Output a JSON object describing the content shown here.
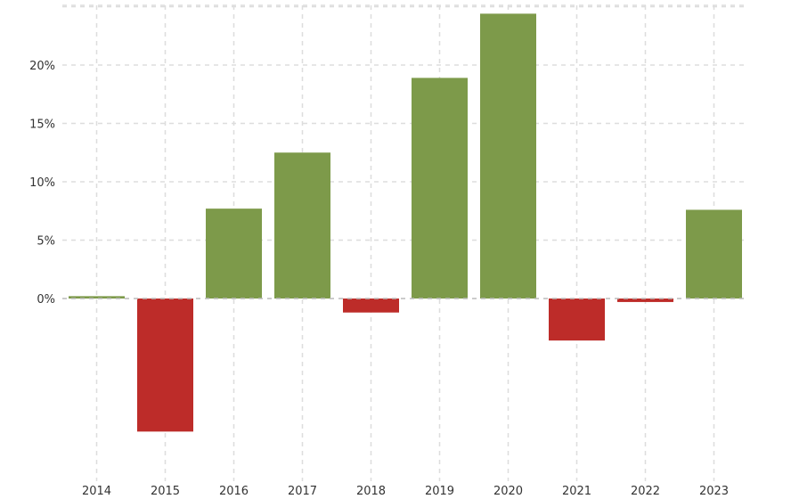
{
  "chart_data": {
    "type": "bar",
    "title": "",
    "xlabel": "",
    "ylabel": "",
    "categories": [
      "2014",
      "2015",
      "2016",
      "2017",
      "2018",
      "2019",
      "2020",
      "2021",
      "2022",
      "2023"
    ],
    "values": [
      0.2,
      -11.4,
      7.7,
      12.5,
      -1.2,
      18.9,
      24.4,
      -3.6,
      -0.3,
      7.6
    ],
    "ylim": [
      -15,
      25
    ],
    "yticks": [
      0,
      5,
      10,
      15,
      20
    ],
    "ytick_labels": [
      "0%",
      "5%",
      "10%",
      "15%",
      "20%"
    ],
    "grid": true,
    "legend": "none",
    "colors": {
      "positive": "#7d9a4a",
      "negative": "#bd2c29",
      "grid": "#dddddd",
      "zero_line": "#bbbbbb",
      "text": "#333333"
    }
  }
}
